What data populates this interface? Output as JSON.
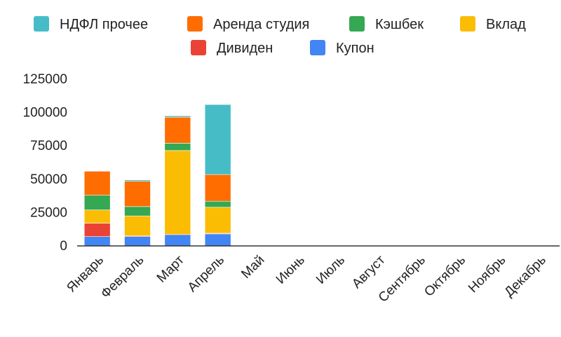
{
  "chart_data": {
    "type": "bar",
    "stacked": true,
    "title": "",
    "xlabel": "",
    "ylabel": "",
    "ylim": [
      0,
      125000
    ],
    "yticks": [
      0,
      25000,
      50000,
      75000,
      100000,
      125000
    ],
    "ytick_labels": [
      "0",
      "25000",
      "50000",
      "75000",
      "100000",
      "125000"
    ],
    "grid": false,
    "legend_position": "top",
    "categories": [
      "Январь",
      "Февраль",
      "Март",
      "Апрель",
      "Май",
      "Июнь",
      "Июль",
      "Август",
      "Сентябрь",
      "Октябрь",
      "Ноябрь",
      "Декабрь"
    ],
    "series": [
      {
        "name": "Купон",
        "color": "#4285f4",
        "values": [
          7000,
          7000,
          8500,
          9000,
          0,
          0,
          0,
          0,
          0,
          0,
          0,
          0
        ]
      },
      {
        "name": "Дивиден",
        "color": "#ea4335",
        "values": [
          10000,
          500,
          0,
          500,
          0,
          0,
          0,
          0,
          0,
          0,
          0,
          0
        ]
      },
      {
        "name": "Вклад",
        "color": "#fbbc04",
        "values": [
          10000,
          15000,
          63000,
          19500,
          0,
          0,
          0,
          0,
          0,
          0,
          0,
          0
        ]
      },
      {
        "name": "Кэшбек",
        "color": "#34a853",
        "values": [
          11000,
          7000,
          5500,
          4500,
          0,
          0,
          0,
          0,
          0,
          0,
          0,
          0
        ]
      },
      {
        "name": "Аренда студия",
        "color": "#ff6d01",
        "values": [
          18000,
          19000,
          19500,
          20000,
          0,
          0,
          0,
          0,
          0,
          0,
          0,
          0
        ]
      },
      {
        "name": "НДФЛ прочее",
        "color": "#46bdc6",
        "values": [
          0,
          1000,
          1000,
          52500,
          0,
          0,
          0,
          0,
          0,
          0,
          0,
          0
        ]
      }
    ],
    "legend_order": [
      "НДФЛ прочее",
      "Аренда студия",
      "Кэшбек",
      "Вклад",
      "Дивиден",
      "Купон"
    ]
  }
}
